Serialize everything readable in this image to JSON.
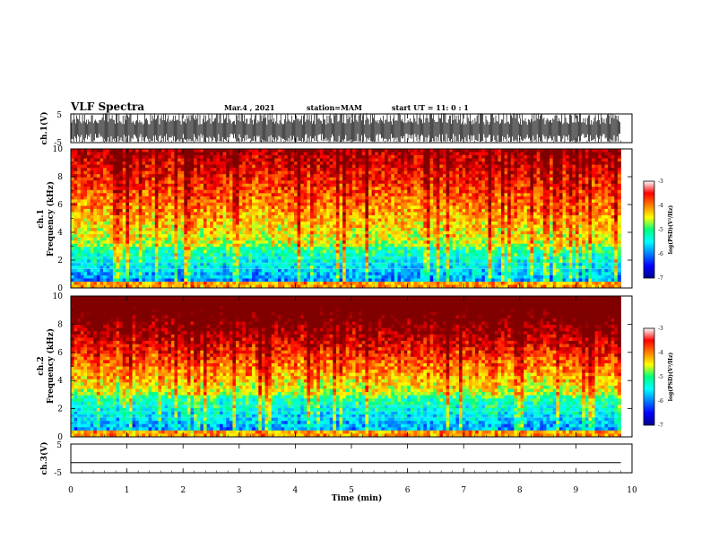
{
  "header": {
    "title": "VLF Spectra",
    "date": "Mar.4 , 2021",
    "station": "station=MAM",
    "start": "start  UT =   11: 0  : 1"
  },
  "chart_data": [
    {
      "type": "line",
      "name": "ch1-waveform",
      "ylabel": "ch.1(V)",
      "ylim": [
        -5,
        5
      ],
      "yticks": [
        "5",
        "-5"
      ],
      "description_values": "dense impulsive waveform spanning approximately -5 to 5 V"
    },
    {
      "type": "heatmap",
      "name": "ch1-spectrogram",
      "ylabel_lines": [
        "ch.1",
        "Frequency  (kHz)"
      ],
      "ylim": [
        0,
        10
      ],
      "yticks": [
        "0",
        "2",
        "4",
        "6",
        "8",
        "10"
      ],
      "color_scale": {
        "label": "log(PSD)(V²/Hz)",
        "range": [
          -7,
          -3
        ],
        "ticks": [
          "-3",
          "-4",
          "-5",
          "-6",
          "-7"
        ]
      }
    },
    {
      "type": "heatmap",
      "name": "ch2-spectrogram",
      "ylabel_lines": [
        "ch.2",
        "Frequency  (kHz)"
      ],
      "ylim": [
        0,
        10
      ],
      "yticks": [
        "0",
        "2",
        "4",
        "6",
        "8",
        "10"
      ],
      "color_scale": {
        "label": "log(PSD)(V²/Hz)",
        "range": [
          -7,
          -3
        ],
        "ticks": [
          "-3",
          "-4",
          "-5",
          "-6",
          "-7"
        ]
      }
    },
    {
      "type": "line",
      "name": "ch3-waveform",
      "ylabel": "ch.3(V)",
      "ylim": [
        -5,
        5
      ],
      "yticks": [
        "5",
        "-5"
      ],
      "x": [
        0,
        9.8
      ],
      "y": [
        -1.5,
        -1.5
      ]
    }
  ],
  "xaxis": {
    "label": "Time  (min)",
    "ticks": [
      "0",
      "1",
      "2",
      "3",
      "4",
      "5",
      "6",
      "7",
      "8",
      "9",
      "10"
    ],
    "xlim": [
      0,
      10
    ],
    "data_end": 9.8
  },
  "colors": {
    "axis": "#000000",
    "background": "#ffffff"
  }
}
